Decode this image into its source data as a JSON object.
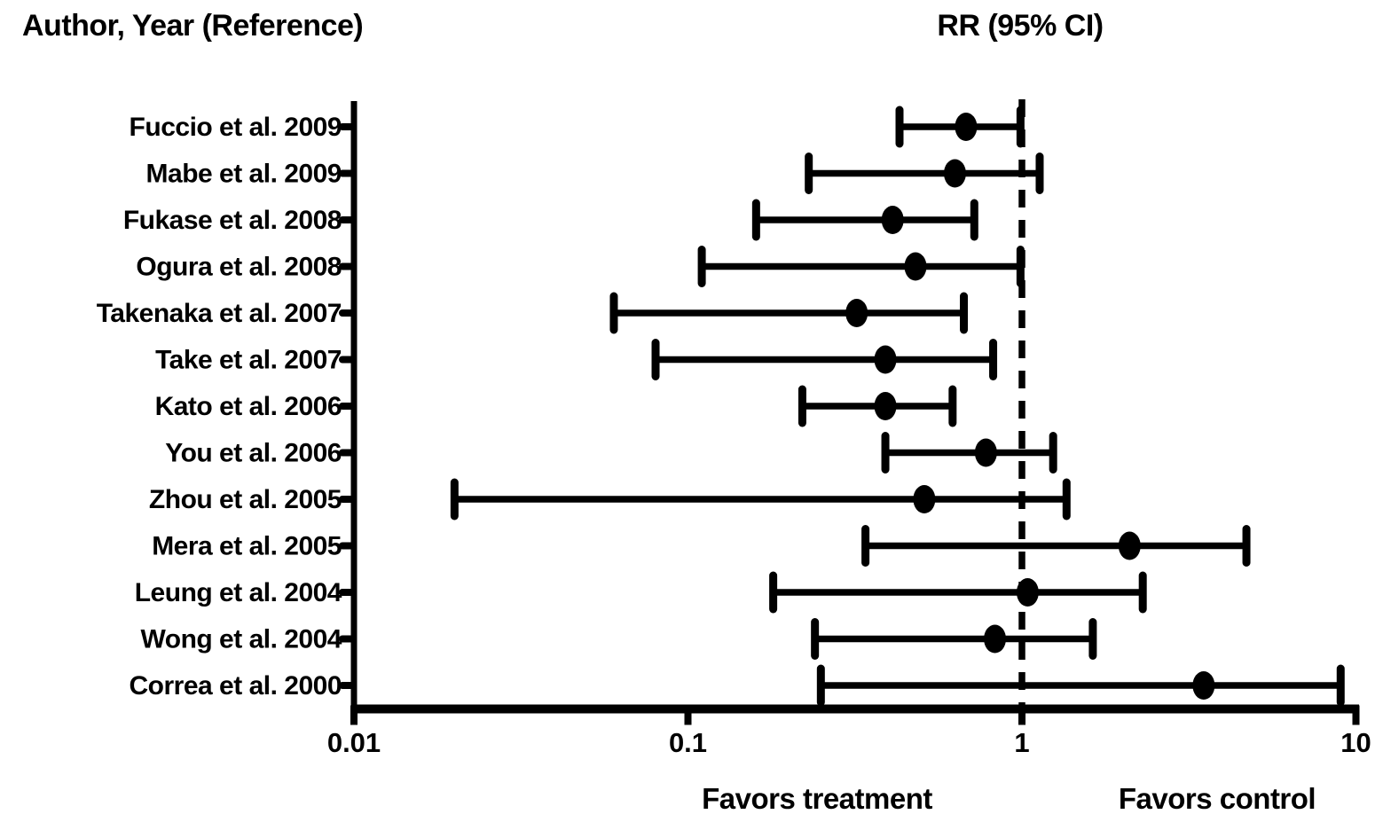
{
  "chart_data": {
    "type": "scatter",
    "subtype": "forest-plot",
    "column_headers": [
      "Author, Year (Reference)",
      "RR (95% CI)"
    ],
    "x_axis": {
      "scale": "log",
      "min": 0.01,
      "max": 10,
      "ticks": [
        0.01,
        0.1,
        1,
        10
      ],
      "tick_labels": [
        "0.01",
        "0.1",
        "1",
        "10"
      ]
    },
    "reference_line_x": 1,
    "annotations": {
      "favors_left": "Favors treatment",
      "favors_right": "Favors control"
    },
    "colors": {
      "marker": "#000000",
      "line": "#000000",
      "background": "#ffffff"
    },
    "studies": [
      {
        "label": "Fuccio et al. 2009",
        "rr": 0.68,
        "ci_low": 0.43,
        "ci_high": 0.99
      },
      {
        "label": "Mabe et al. 2009",
        "rr": 0.63,
        "ci_low": 0.23,
        "ci_high": 1.13
      },
      {
        "label": "Fukase et al. 2008",
        "rr": 0.41,
        "ci_low": 0.16,
        "ci_high": 0.72
      },
      {
        "label": "Ogura et al. 2008",
        "rr": 0.48,
        "ci_low": 0.11,
        "ci_high": 0.99
      },
      {
        "label": "Takenaka et al. 2007",
        "rr": 0.32,
        "ci_low": 0.06,
        "ci_high": 0.67
      },
      {
        "label": "Take et al. 2007",
        "rr": 0.39,
        "ci_low": 0.08,
        "ci_high": 0.82
      },
      {
        "label": "Kato et al. 2006",
        "rr": 0.39,
        "ci_low": 0.22,
        "ci_high": 0.62
      },
      {
        "label": "You et al. 2006",
        "rr": 0.78,
        "ci_low": 0.39,
        "ci_high": 1.24
      },
      {
        "label": "Zhou et al. 2005",
        "rr": 0.51,
        "ci_low": 0.02,
        "ci_high": 1.36
      },
      {
        "label": "Mera et al. 2005",
        "rr": 2.1,
        "ci_low": 0.34,
        "ci_high": 4.7
      },
      {
        "label": "Leung et al. 2004",
        "rr": 1.04,
        "ci_low": 0.18,
        "ci_high": 2.3
      },
      {
        "label": "Wong et al. 2004",
        "rr": 0.83,
        "ci_low": 0.24,
        "ci_high": 1.63
      },
      {
        "label": "Correa et al. 2000",
        "rr": 3.5,
        "ci_low": 0.25,
        "ci_high": 9.0
      }
    ]
  }
}
